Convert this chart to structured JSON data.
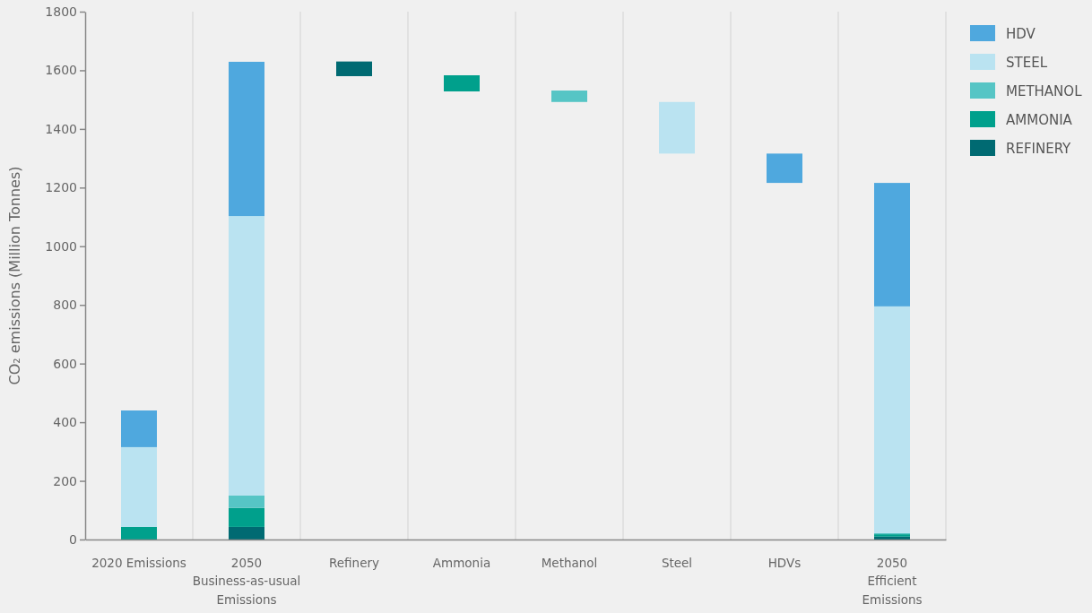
{
  "chart_data": {
    "type": "bar",
    "stacked": true,
    "ylabel": "CO₂ emissions (Million Tonnes)",
    "categories": [
      "2020 Emissions",
      "2050\nBusiness-as-usual\nEmissions",
      "Refinery",
      "Ammonia",
      "Methanol",
      "Steel",
      "HDVs",
      "2050\nEfficient\nEmissions"
    ],
    "series": [
      {
        "name": "REFINERY",
        "color": "#006a72",
        "values": [
          null,
          43,
          50,
          null,
          null,
          null,
          null,
          10
        ],
        "base": [
          null,
          null,
          1580,
          null,
          null,
          null,
          null,
          null
        ]
      },
      {
        "name": "AMMONIA",
        "color": "#00a08c",
        "values": [
          43,
          65,
          null,
          55,
          null,
          null,
          null,
          8
        ],
        "base": [
          null,
          null,
          null,
          1528,
          null,
          null,
          null,
          null
        ]
      },
      {
        "name": "METHANOL",
        "color": "#56c5c5",
        "values": [
          null,
          42,
          null,
          null,
          39,
          null,
          null,
          4
        ],
        "base": [
          null,
          null,
          null,
          null,
          1492,
          null,
          null,
          null
        ]
      },
      {
        "name": "STEEL",
        "color": "#bae3f1",
        "values": [
          272,
          953,
          null,
          null,
          null,
          176,
          null,
          773
        ],
        "base": [
          null,
          null,
          null,
          null,
          null,
          1316,
          null,
          null
        ]
      },
      {
        "name": "HDV",
        "color": "#4fa8de",
        "values": [
          125,
          526,
          null,
          null,
          null,
          null,
          100,
          421
        ],
        "base": [
          null,
          null,
          null,
          null,
          null,
          null,
          1216,
          null
        ]
      }
    ],
    "ylim": [
      0,
      1800
    ],
    "yticks": [
      0,
      200,
      400,
      600,
      800,
      1000,
      1200,
      1400,
      1600,
      1800
    ],
    "grid": "x",
    "legend": "top right"
  }
}
